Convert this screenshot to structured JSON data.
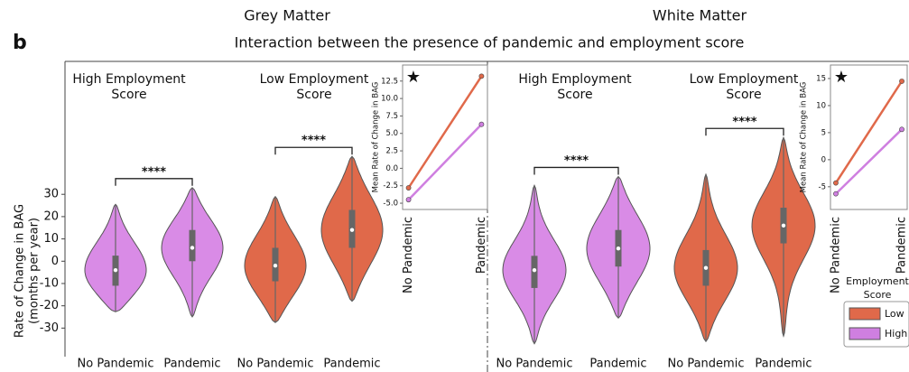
{
  "figure": {
    "panel_label": "b",
    "title": "Interaction between the presence of pandemic and employment score"
  },
  "chart_data": [
    {
      "type": "violin",
      "title": "Grey Matter",
      "y_label": [
        "Rate of Change in BAG",
        "(months per year)"
      ],
      "ylim": [
        -42,
        88
      ],
      "yticks": [
        -30,
        -20,
        -10,
        0,
        10,
        20,
        30
      ],
      "categories": [
        "No Pandemic",
        "Pandemic",
        "No Pandemic",
        "Pandemic"
      ],
      "groups": [
        {
          "label": [
            "High Employment",
            "Score"
          ],
          "color": "#d98be6",
          "significance": "****"
        },
        {
          "label": [
            "Low Employment",
            "Score"
          ],
          "color": "#e0694a",
          "significance": "****"
        }
      ],
      "violins": [
        {
          "min": -22.7,
          "q1": -11,
          "median": -4,
          "q3": 2.5,
          "max": 25.5
        },
        {
          "min": -25,
          "q1": 0,
          "median": 6,
          "q3": 14,
          "max": 33
        },
        {
          "min": -27.5,
          "q1": -9,
          "median": -2,
          "q3": 6,
          "max": 29
        },
        {
          "min": -18,
          "q1": 6,
          "median": 14,
          "q3": 23,
          "max": 47
        }
      ]
    },
    {
      "type": "line",
      "y_label": "Mean Rate of Change in BAG",
      "annotation": "★",
      "categories": [
        "No Pandemic",
        "Pandemic"
      ],
      "ylim": [
        -5.9,
        14.8
      ],
      "yticks": [
        {
          "value": -5,
          "label": "-5.0"
        },
        -2.5,
        {
          "value": 0,
          "label": "0.0"
        },
        2.5,
        {
          "value": 5,
          "label": "5.0"
        },
        7.5,
        {
          "value": 10,
          "label": "10.0"
        },
        12.5
      ],
      "series": [
        {
          "color": "#e0694a",
          "values": [
            -2.8,
            13.2
          ]
        },
        {
          "color": "#cf7fe0",
          "values": [
            -4.5,
            6.3
          ]
        }
      ]
    },
    {
      "type": "violin",
      "title": "White Matter",
      "ylim": [
        -42,
        88
      ],
      "categories": [
        "No Pandemic",
        "Pandemic",
        "No Pandemic",
        "Pandemic"
      ],
      "groups": [
        {
          "label": [
            "High Employment",
            "Score"
          ],
          "color": "#d98be6",
          "significance": "****"
        },
        {
          "label": [
            "Low Employment",
            "Score"
          ],
          "color": "#e0694a",
          "significance": "****"
        }
      ],
      "violins": [
        {
          "min": -37,
          "q1": -12,
          "median": -4,
          "q3": 2.4,
          "max": 34
        },
        {
          "min": -25.5,
          "q1": -2.4,
          "median": 5.7,
          "q3": 14,
          "max": 38
        },
        {
          "min": -36,
          "q1": -11,
          "median": -3,
          "q3": 5,
          "max": 39
        },
        {
          "min": -33.6,
          "q1": 8,
          "median": 16,
          "q3": 24,
          "max": 55.5
        }
      ]
    },
    {
      "type": "line",
      "y_label": "Mean Rate of Change in BAG",
      "annotation": "★",
      "categories": [
        "No Pandemic",
        "Pandemic"
      ],
      "ylim": [
        -9.2,
        17.5
      ],
      "yticks": [
        -5,
        0,
        5,
        10,
        15
      ],
      "legend": {
        "title": [
          "Employment",
          "Score"
        ]
      },
      "series": [
        {
          "name": "Low",
          "color": "#e0694a",
          "values": [
            -4.3,
            14.5
          ]
        },
        {
          "name": "High",
          "color": "#cf7fe0",
          "values": [
            -6.3,
            5.6
          ]
        }
      ]
    }
  ]
}
